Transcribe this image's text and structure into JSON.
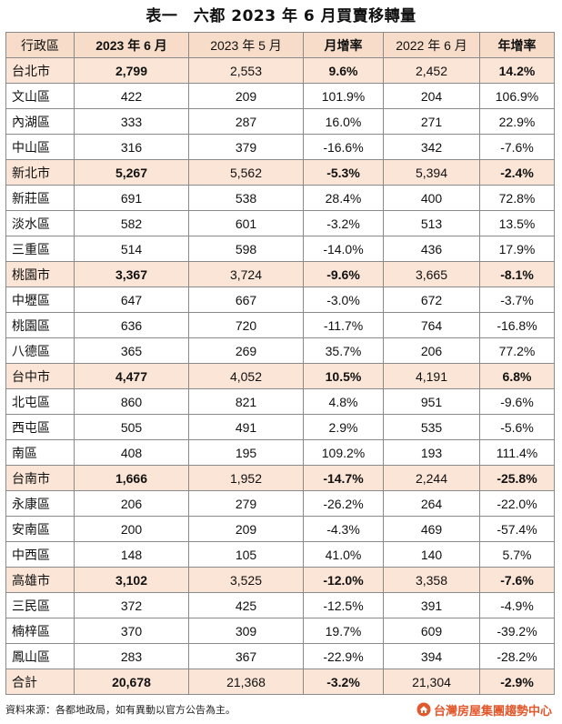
{
  "title": "表一　六都 2023 年 6 月買賣移轉量",
  "headers": [
    "行政區",
    "2023 年 6 月",
    "2023 年 5 月",
    "月增率",
    "2022 年 6 月",
    "年增率"
  ],
  "rows": [
    {
      "type": "city",
      "cells": [
        "台北市",
        "2,799",
        "2,553",
        "9.6%",
        "2,452",
        "14.2%"
      ]
    },
    {
      "type": "district",
      "cells": [
        "文山區",
        "422",
        "209",
        "101.9%",
        "204",
        "106.9%"
      ]
    },
    {
      "type": "district",
      "cells": [
        "內湖區",
        "333",
        "287",
        "16.0%",
        "271",
        "22.9%"
      ]
    },
    {
      "type": "district",
      "cells": [
        "中山區",
        "316",
        "379",
        "-16.6%",
        "342",
        "-7.6%"
      ]
    },
    {
      "type": "city",
      "cells": [
        "新北市",
        "5,267",
        "5,562",
        "-5.3%",
        "5,394",
        "-2.4%"
      ]
    },
    {
      "type": "district",
      "cells": [
        "新莊區",
        "691",
        "538",
        "28.4%",
        "400",
        "72.8%"
      ]
    },
    {
      "type": "district",
      "cells": [
        "淡水區",
        "582",
        "601",
        "-3.2%",
        "513",
        "13.5%"
      ]
    },
    {
      "type": "district",
      "cells": [
        "三重區",
        "514",
        "598",
        "-14.0%",
        "436",
        "17.9%"
      ]
    },
    {
      "type": "city",
      "cells": [
        "桃園市",
        "3,367",
        "3,724",
        "-9.6%",
        "3,665",
        "-8.1%"
      ]
    },
    {
      "type": "district",
      "cells": [
        "中壢區",
        "647",
        "667",
        "-3.0%",
        "672",
        "-3.7%"
      ]
    },
    {
      "type": "district",
      "cells": [
        "桃園區",
        "636",
        "720",
        "-11.7%",
        "764",
        "-16.8%"
      ]
    },
    {
      "type": "district",
      "cells": [
        "八德區",
        "365",
        "269",
        "35.7%",
        "206",
        "77.2%"
      ]
    },
    {
      "type": "city",
      "cells": [
        "台中市",
        "4,477",
        "4,052",
        "10.5%",
        "4,191",
        "6.8%"
      ]
    },
    {
      "type": "district",
      "cells": [
        "北屯區",
        "860",
        "821",
        "4.8%",
        "951",
        "-9.6%"
      ]
    },
    {
      "type": "district",
      "cells": [
        "西屯區",
        "505",
        "491",
        "2.9%",
        "535",
        "-5.6%"
      ]
    },
    {
      "type": "district",
      "cells": [
        "南區",
        "408",
        "195",
        "109.2%",
        "193",
        "111.4%"
      ]
    },
    {
      "type": "city",
      "cells": [
        "台南市",
        "1,666",
        "1,952",
        "-14.7%",
        "2,244",
        "-25.8%"
      ]
    },
    {
      "type": "district",
      "cells": [
        "永康區",
        "206",
        "279",
        "-26.2%",
        "264",
        "-22.0%"
      ]
    },
    {
      "type": "district",
      "cells": [
        "安南區",
        "200",
        "209",
        "-4.3%",
        "469",
        "-57.4%"
      ]
    },
    {
      "type": "district",
      "cells": [
        "中西區",
        "148",
        "105",
        "41.0%",
        "140",
        "5.7%"
      ]
    },
    {
      "type": "city",
      "cells": [
        "高雄市",
        "3,102",
        "3,525",
        "-12.0%",
        "3,358",
        "-7.6%"
      ]
    },
    {
      "type": "district",
      "cells": [
        "三民區",
        "372",
        "425",
        "-12.5%",
        "391",
        "-4.9%"
      ]
    },
    {
      "type": "district",
      "cells": [
        "楠梓區",
        "370",
        "309",
        "19.7%",
        "609",
        "-39.2%"
      ]
    },
    {
      "type": "district",
      "cells": [
        "鳳山區",
        "283",
        "367",
        "-22.9%",
        "394",
        "-28.2%"
      ]
    },
    {
      "type": "total",
      "cells": [
        "合計",
        "20,678",
        "21,368",
        "-3.2%",
        "21,304",
        "-2.9%"
      ]
    }
  ],
  "footer": {
    "source": "資料來源：各都地政局，如有異動以官方公告為主。",
    "brand": "台灣房屋集團趨勢中心",
    "brand_icon": "house-logo-icon",
    "accent_color": "#e2582c",
    "highlight_color": "#fbe5d6"
  }
}
